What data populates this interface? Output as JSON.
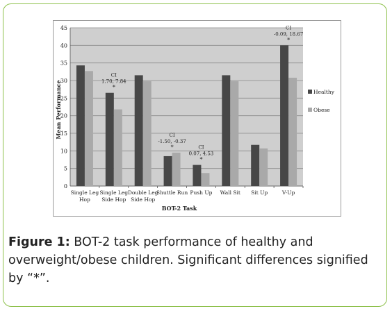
{
  "chart_data": {
    "type": "bar",
    "title": "",
    "xlabel": "BOT-2 Task",
    "ylabel": "Mean Performance",
    "ylim": [
      0,
      45
    ],
    "yticks": [
      "0",
      "5",
      "10",
      "15",
      "20",
      "25",
      "30",
      "35",
      "40",
      "45"
    ],
    "grid": true,
    "legend_position": "right",
    "categories": [
      [
        "Single Leg",
        "Hop"
      ],
      [
        "Single Leg",
        "Side Hop"
      ],
      [
        "Double Leg",
        "Side Hop"
      ],
      [
        "Shuttle Run"
      ],
      [
        "Push Up"
      ],
      [
        "Wall Sit"
      ],
      [
        "Sit Up"
      ],
      [
        "V-Up"
      ]
    ],
    "series": [
      {
        "name": "Healthy",
        "color": "#474747",
        "values": [
          34.3,
          26.5,
          31.5,
          8.5,
          6.0,
          31.5,
          11.7,
          40.0
        ]
      },
      {
        "name": "Obese",
        "color": "#a9a9a9",
        "values": [
          32.7,
          21.8,
          29.8,
          9.5,
          3.7,
          29.8,
          10.7,
          30.8
        ]
      }
    ],
    "annotations": [
      {
        "category_index": 1,
        "ci_label": "CI",
        "range": "1.70, 7.84",
        "marker": "*"
      },
      {
        "category_index": 3,
        "ci_label": "CI",
        "range": "-1.50, -0.37",
        "marker": "*"
      },
      {
        "category_index": 4,
        "ci_label": "CI",
        "range": "0.07, 4.53",
        "marker": "*"
      },
      {
        "category_index": 7,
        "ci_label": "CI",
        "range": "-0.09, 18.67",
        "marker": "*"
      }
    ]
  },
  "caption": {
    "label": "Figure 1:",
    "text": " BOT-2 task performance of healthy and overweight/obese children. Significant differences signified by “*”."
  }
}
